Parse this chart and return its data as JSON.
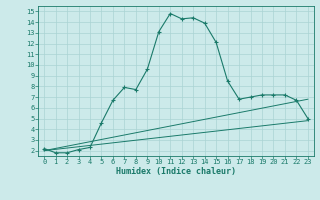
{
  "xlabel": "Humidex (Indice chaleur)",
  "bg_color": "#cceaea",
  "line_color": "#1a7a6a",
  "xlim": [
    -0.5,
    23.5
  ],
  "ylim": [
    1.5,
    15.5
  ],
  "yticks": [
    2,
    3,
    4,
    5,
    6,
    7,
    8,
    9,
    10,
    11,
    12,
    13,
    14,
    15
  ],
  "xticks": [
    0,
    1,
    2,
    3,
    4,
    5,
    6,
    7,
    8,
    9,
    10,
    11,
    12,
    13,
    14,
    15,
    16,
    17,
    18,
    19,
    20,
    21,
    22,
    23
  ],
  "line1_x": [
    0,
    1,
    2,
    3,
    4,
    5,
    6,
    7,
    8,
    9,
    10,
    11,
    12,
    13,
    14,
    15,
    16,
    17,
    18,
    19,
    20,
    21,
    22,
    23
  ],
  "line1_y": [
    2.2,
    1.8,
    1.8,
    2.1,
    2.3,
    4.6,
    6.7,
    7.9,
    7.7,
    9.6,
    13.1,
    14.8,
    14.3,
    14.4,
    13.9,
    12.1,
    8.5,
    6.8,
    7.0,
    7.2,
    7.2,
    7.2,
    6.7,
    5.0
  ],
  "line2_x": [
    0,
    23
  ],
  "line2_y": [
    2.0,
    4.8
  ],
  "line3_x": [
    0,
    23
  ],
  "line3_y": [
    2.0,
    6.8
  ],
  "grid_color": "#aad4d4",
  "tick_fontsize": 5.0,
  "xlabel_fontsize": 6.0
}
